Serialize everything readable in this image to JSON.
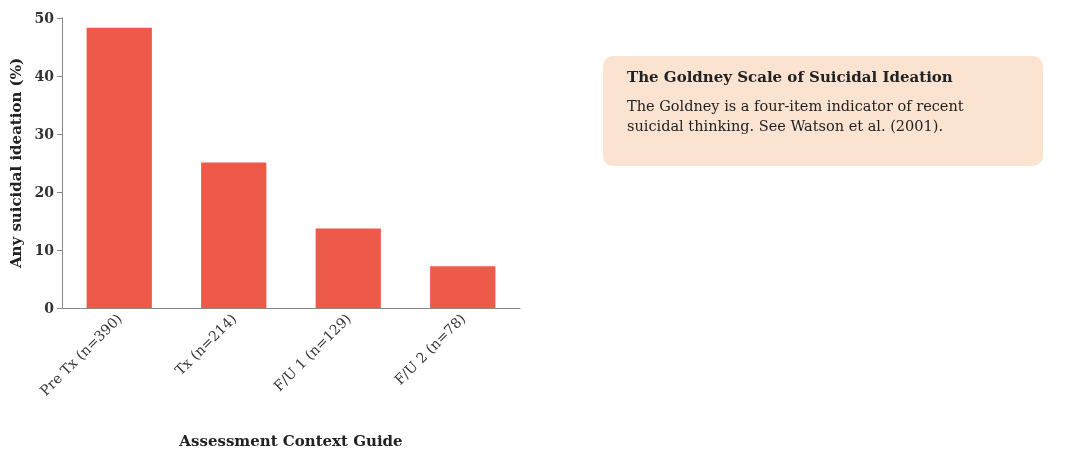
{
  "chart_data": [
    {
      "type": "bar",
      "xlabel": "Assessment Context Guide",
      "ylabel": "Any suicidal ideation (%)",
      "categories": [
        "Pre Tx (n=390)",
        "Tx (n=214)",
        "F/U 1 (n=129)",
        "F/U 2 (n=78)"
      ],
      "values": [
        48.3,
        25.1,
        13.7,
        7.2
      ],
      "color": "#ee5a4a",
      "ylim": [
        0,
        50
      ],
      "yticks": [
        0,
        10,
        20,
        30,
        40,
        50
      ],
      "grid": false
    },
    {
      "type": "other",
      "title": "The Goldney Scale of Suicidal Ideation",
      "annotations": [
        "The Goldney is a four-item indicator of recent suicidal thinking. See Watson et al. (2001)."
      ]
    }
  ]
}
